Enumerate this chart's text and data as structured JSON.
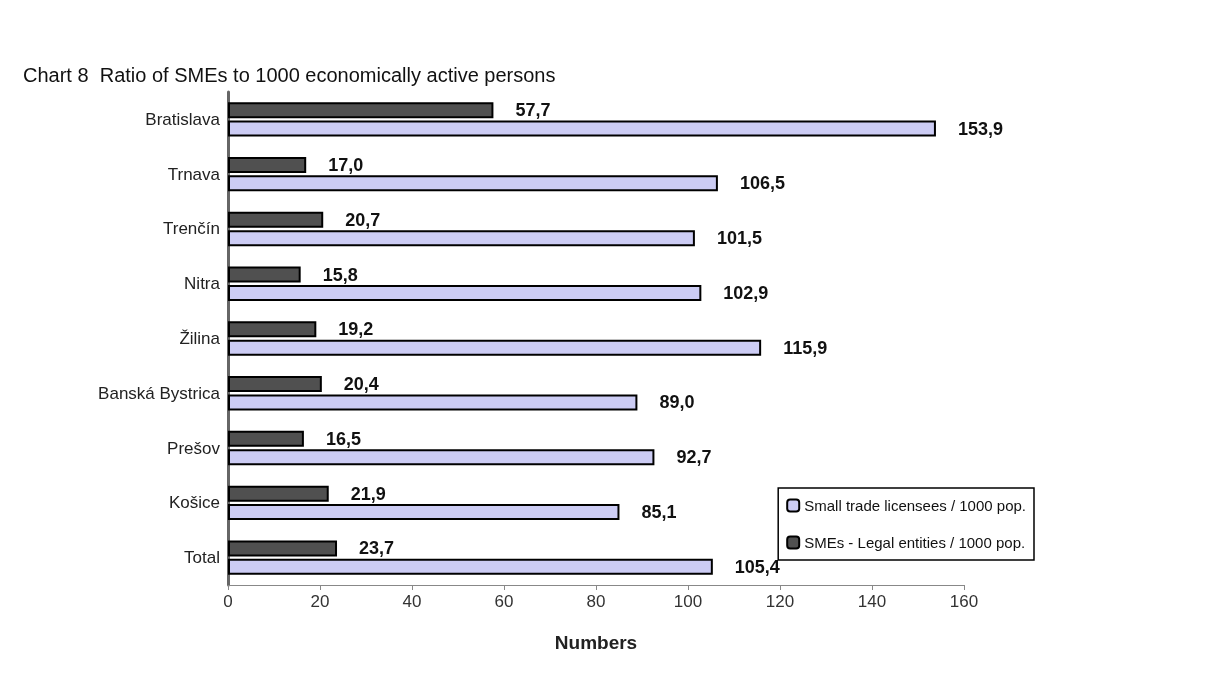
{
  "chart_data": {
    "type": "bar",
    "orientation": "horizontal",
    "title": "Chart 8  Ratio of SMEs to 1000 economically active persons",
    "xlabel": "Numbers",
    "categories": [
      "Bratislava",
      "Trnava",
      "Trenčín",
      "Nitra",
      "Žilina",
      "Banská Bystrica",
      "Prešov",
      "Košice",
      "Total"
    ],
    "series": [
      {
        "name": "SMEs - Legal entities / 1000 pop.",
        "color": "#505050",
        "values": [
          57.7,
          17.0,
          20.7,
          15.8,
          19.2,
          20.4,
          16.5,
          21.9,
          23.7
        ],
        "value_labels": [
          "57,7",
          "17,0",
          "20,7",
          "15,8",
          "19,2",
          "20,4",
          "16,5",
          "21,9",
          "23,7"
        ]
      },
      {
        "name": "Small trade licensees / 1000 pop.",
        "color": "#ccccf4",
        "values": [
          153.9,
          106.5,
          101.5,
          102.9,
          115.9,
          89.0,
          92.7,
          85.1,
          105.4
        ],
        "value_labels": [
          "153,9",
          "106,5",
          "101,5",
          "102,9",
          "115,9",
          "89,0",
          "92,7",
          "85,1",
          "105,4"
        ]
      }
    ],
    "xlim": [
      0,
      160
    ],
    "xticks": [
      0,
      20,
      40,
      60,
      80,
      100,
      120,
      140,
      160
    ],
    "grid": false,
    "legend": "right"
  }
}
